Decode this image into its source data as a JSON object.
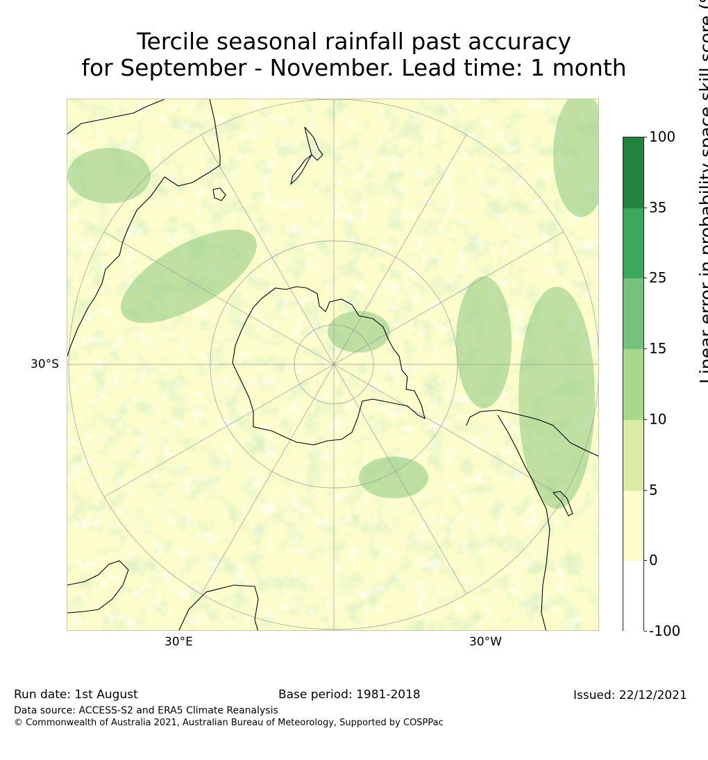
{
  "title": {
    "line1": "Tercile seasonal rainfall past accuracy",
    "line2": "for September - November. Lead time: 1 month"
  },
  "map": {
    "projection": "south polar stereographic",
    "axis_labels": {
      "left": "30°S",
      "bottom_left": "30°E",
      "bottom_right": "30°W"
    }
  },
  "colorbar": {
    "title": "Linear error in probability space skill score (%)",
    "labels": [
      "100",
      "35",
      "25",
      "15",
      "10",
      "5",
      "0",
      "-100"
    ],
    "bins": [
      {
        "range": "35 to 100",
        "color": "#22843f"
      },
      {
        "range": "25 to 35",
        "color": "#3ca85c"
      },
      {
        "range": "15 to 25",
        "color": "#74c27c"
      },
      {
        "range": "10 to 15",
        "color": "#a8d98b"
      },
      {
        "range": "5 to 10",
        "color": "#d8eda3"
      },
      {
        "range": "0 to 5",
        "color": "#fcfdcb"
      },
      {
        "range": "-100 to 0",
        "color": "#ffffff"
      }
    ]
  },
  "footer": {
    "run_date": "Run date: 1st August",
    "base_period": "Base period: 1981-2018",
    "issued": "Issued: 22/12/2021",
    "data_source": "Data source: ACCESS-S2 and ERA5 Climate Reanalysis",
    "copyright": "© Commonwealth of Australia 2021, Australian Bureau of Meteorology, Supported by COSPPac"
  }
}
